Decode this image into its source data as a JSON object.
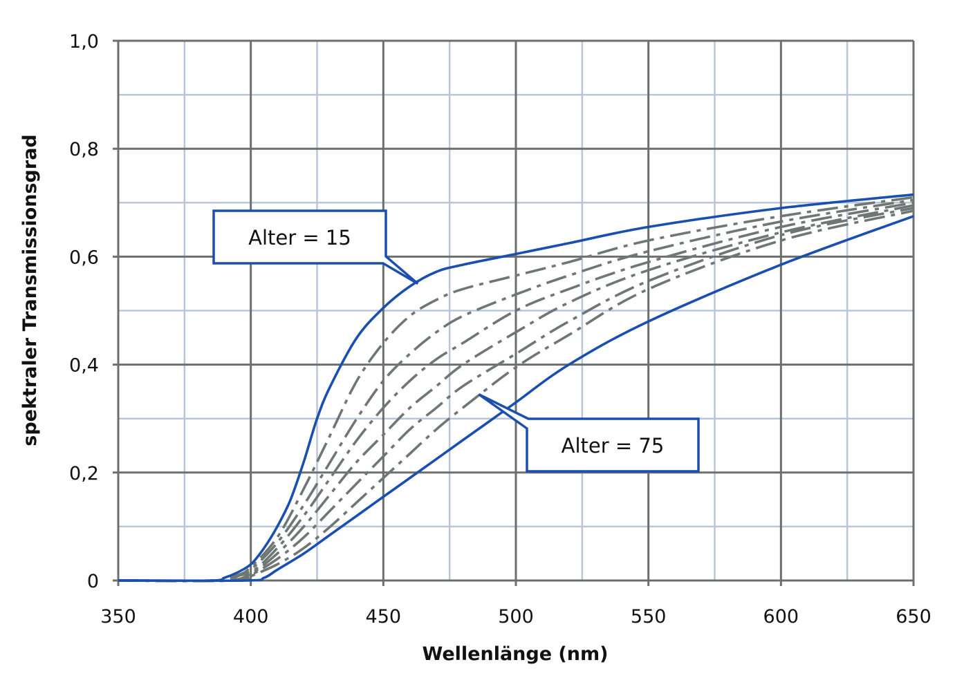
{
  "chart_data": {
    "type": "line",
    "title": "",
    "xlabel": "Wellenlänge (nm)",
    "ylabel": "spektraler Transmissionsgrad",
    "xlim": [
      350,
      650
    ],
    "ylim": [
      0,
      1.0
    ],
    "x_ticks": [
      350,
      400,
      450,
      500,
      550,
      600,
      650
    ],
    "y_ticks": [
      0,
      0.2,
      0.4,
      0.6,
      0.8,
      1.0
    ],
    "y_tick_labels": [
      "0",
      "0,2",
      "0,4",
      "0,6",
      "0,8",
      "1,0"
    ],
    "grid": {
      "major": true,
      "minor": true
    },
    "colors": {
      "major_grid": "#6b706d",
      "minor_grid": "#b9c6da",
      "highlight_curve": "#1a4fb0",
      "intermediate_curve": "#6e7773",
      "callout_border": "#1a4fb0"
    },
    "series": [
      {
        "name": "Alter = 15",
        "style": "solid",
        "color": "#1a4fb0",
        "x": [
          350,
          385,
          390,
          395,
          400,
          405,
          410,
          415,
          420,
          425,
          430,
          440,
          450,
          460,
          470,
          480,
          500,
          520,
          550,
          600,
          650
        ],
        "y": [
          0,
          0,
          0.005,
          0.015,
          0.03,
          0.06,
          0.1,
          0.15,
          0.22,
          0.3,
          0.36,
          0.45,
          0.505,
          0.545,
          0.572,
          0.585,
          0.605,
          0.625,
          0.655,
          0.69,
          0.715
        ]
      },
      {
        "style": "dashdot",
        "color": "#6e7773",
        "x": [
          350,
          385,
          395,
          400,
          410,
          420,
          430,
          440,
          450,
          460,
          470,
          480,
          500,
          520,
          550,
          600,
          650
        ],
        "y": [
          0,
          0,
          0.01,
          0.025,
          0.08,
          0.17,
          0.27,
          0.37,
          0.44,
          0.49,
          0.52,
          0.54,
          0.565,
          0.59,
          0.63,
          0.675,
          0.71
        ]
      },
      {
        "style": "dashdot",
        "color": "#6e7773",
        "x": [
          350,
          388,
          395,
          400,
          410,
          420,
          430,
          440,
          450,
          460,
          470,
          480,
          500,
          520,
          550,
          600,
          650
        ],
        "y": [
          0,
          0,
          0.008,
          0.02,
          0.07,
          0.14,
          0.22,
          0.3,
          0.37,
          0.42,
          0.46,
          0.49,
          0.53,
          0.565,
          0.61,
          0.665,
          0.705
        ]
      },
      {
        "style": "dashdot",
        "color": "#6e7773",
        "x": [
          350,
          390,
          400,
          410,
          420,
          430,
          440,
          450,
          460,
          470,
          480,
          500,
          520,
          550,
          600,
          650
        ],
        "y": [
          0,
          0,
          0.015,
          0.06,
          0.12,
          0.19,
          0.26,
          0.32,
          0.37,
          0.41,
          0.44,
          0.5,
          0.54,
          0.59,
          0.655,
          0.7
        ]
      },
      {
        "style": "dashdot",
        "color": "#6e7773",
        "x": [
          350,
          392,
          400,
          410,
          420,
          430,
          440,
          450,
          460,
          470,
          480,
          500,
          520,
          550,
          600,
          650
        ],
        "y": [
          0,
          0,
          0.012,
          0.05,
          0.1,
          0.16,
          0.22,
          0.27,
          0.32,
          0.36,
          0.4,
          0.46,
          0.515,
          0.575,
          0.645,
          0.695
        ]
      },
      {
        "style": "dashdot",
        "color": "#6e7773",
        "x": [
          350,
          394,
          400,
          410,
          420,
          430,
          440,
          450,
          460,
          470,
          480,
          500,
          520,
          550,
          600,
          650
        ],
        "y": [
          0,
          0,
          0.01,
          0.04,
          0.08,
          0.13,
          0.18,
          0.23,
          0.28,
          0.32,
          0.36,
          0.42,
          0.48,
          0.555,
          0.64,
          0.69
        ]
      },
      {
        "style": "dashdot",
        "color": "#6e7773",
        "x": [
          350,
          396,
          400,
          410,
          420,
          430,
          440,
          450,
          460,
          470,
          480,
          500,
          520,
          550,
          600,
          650
        ],
        "y": [
          0,
          0,
          0.008,
          0.03,
          0.06,
          0.1,
          0.145,
          0.19,
          0.235,
          0.28,
          0.32,
          0.395,
          0.455,
          0.54,
          0.63,
          0.685
        ]
      },
      {
        "name": "Alter = 75",
        "style": "solid",
        "color": "#1a4fb0",
        "x": [
          350,
          398,
          405,
          410,
          420,
          430,
          440,
          450,
          460,
          470,
          480,
          490,
          500,
          520,
          550,
          600,
          650
        ],
        "y": [
          0,
          0,
          0.005,
          0.02,
          0.05,
          0.085,
          0.12,
          0.155,
          0.19,
          0.225,
          0.26,
          0.295,
          0.33,
          0.4,
          0.48,
          0.585,
          0.675
        ]
      }
    ],
    "annotations": [
      {
        "text": "Alter = 15",
        "points_to": [
          463,
          0.55
        ]
      },
      {
        "text": "Alter = 75",
        "points_to": [
          486,
          0.345
        ]
      }
    ]
  }
}
